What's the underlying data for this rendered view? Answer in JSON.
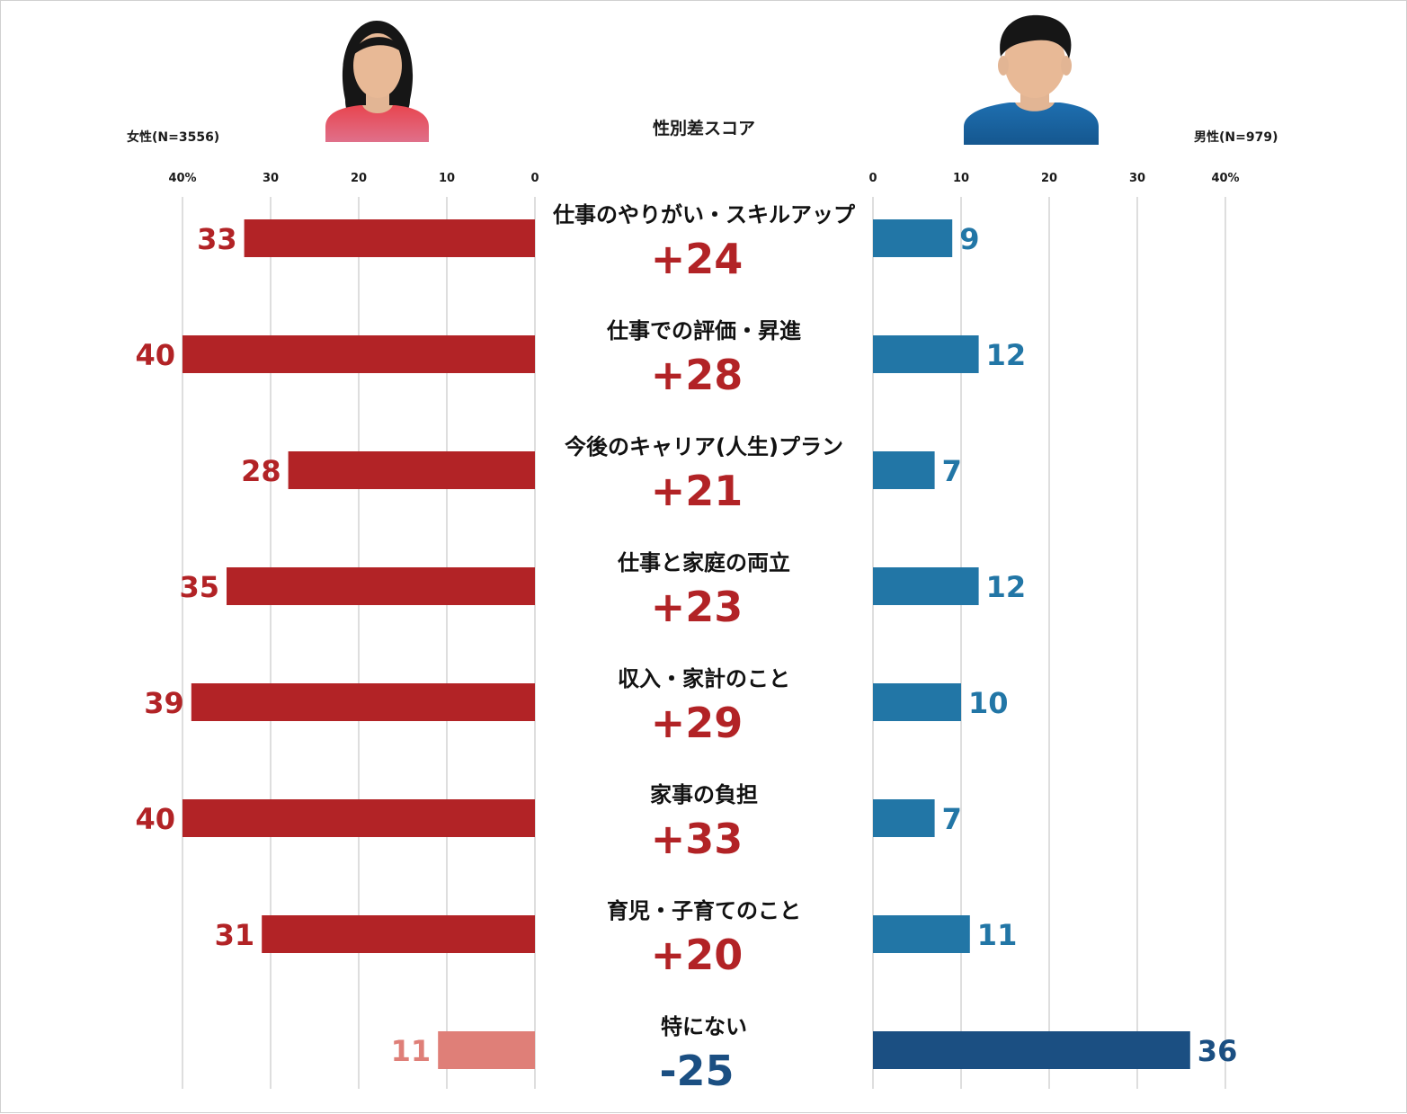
{
  "chart_data": {
    "type": "bar",
    "title": "性別差スコア",
    "left_header": "女性(N=3556)",
    "right_header": "男性(N=979)",
    "left_ticks": [
      "40%",
      "30",
      "20",
      "10",
      "0"
    ],
    "right_ticks": [
      "0",
      "10",
      "20",
      "30",
      "40%"
    ],
    "xlim": [
      0,
      40
    ],
    "categories": [
      "仕事のやりがい・スキルアップ",
      "仕事での評価・昇進",
      "今後のキャリア(人生)プラン",
      "仕事と家庭の両立",
      "収入・家計のこと",
      "家事の負担",
      "育児・子育てのこと",
      "特にない"
    ],
    "series": [
      {
        "name": "女性(N=3556)",
        "values": [
          33,
          40,
          28,
          35,
          39,
          40,
          31,
          11
        ]
      },
      {
        "name": "男性(N=979)",
        "values": [
          9,
          12,
          7,
          12,
          10,
          7,
          11,
          36
        ]
      }
    ],
    "scores": [
      "+24",
      "+28",
      "+21",
      "+23",
      "+29",
      "+33",
      "+20",
      "-25"
    ],
    "grid": true,
    "colors": {
      "female": "#b22326",
      "female_highlight": "#df7f78",
      "male": "#2276a6",
      "male_highlight": "#1b4f82",
      "positive_score": "#b22326",
      "negative_score": "#1b4f82",
      "grid": "#bdbdbd"
    }
  },
  "icons": {
    "female": "woman-avatar-icon",
    "male": "man-avatar-icon"
  }
}
